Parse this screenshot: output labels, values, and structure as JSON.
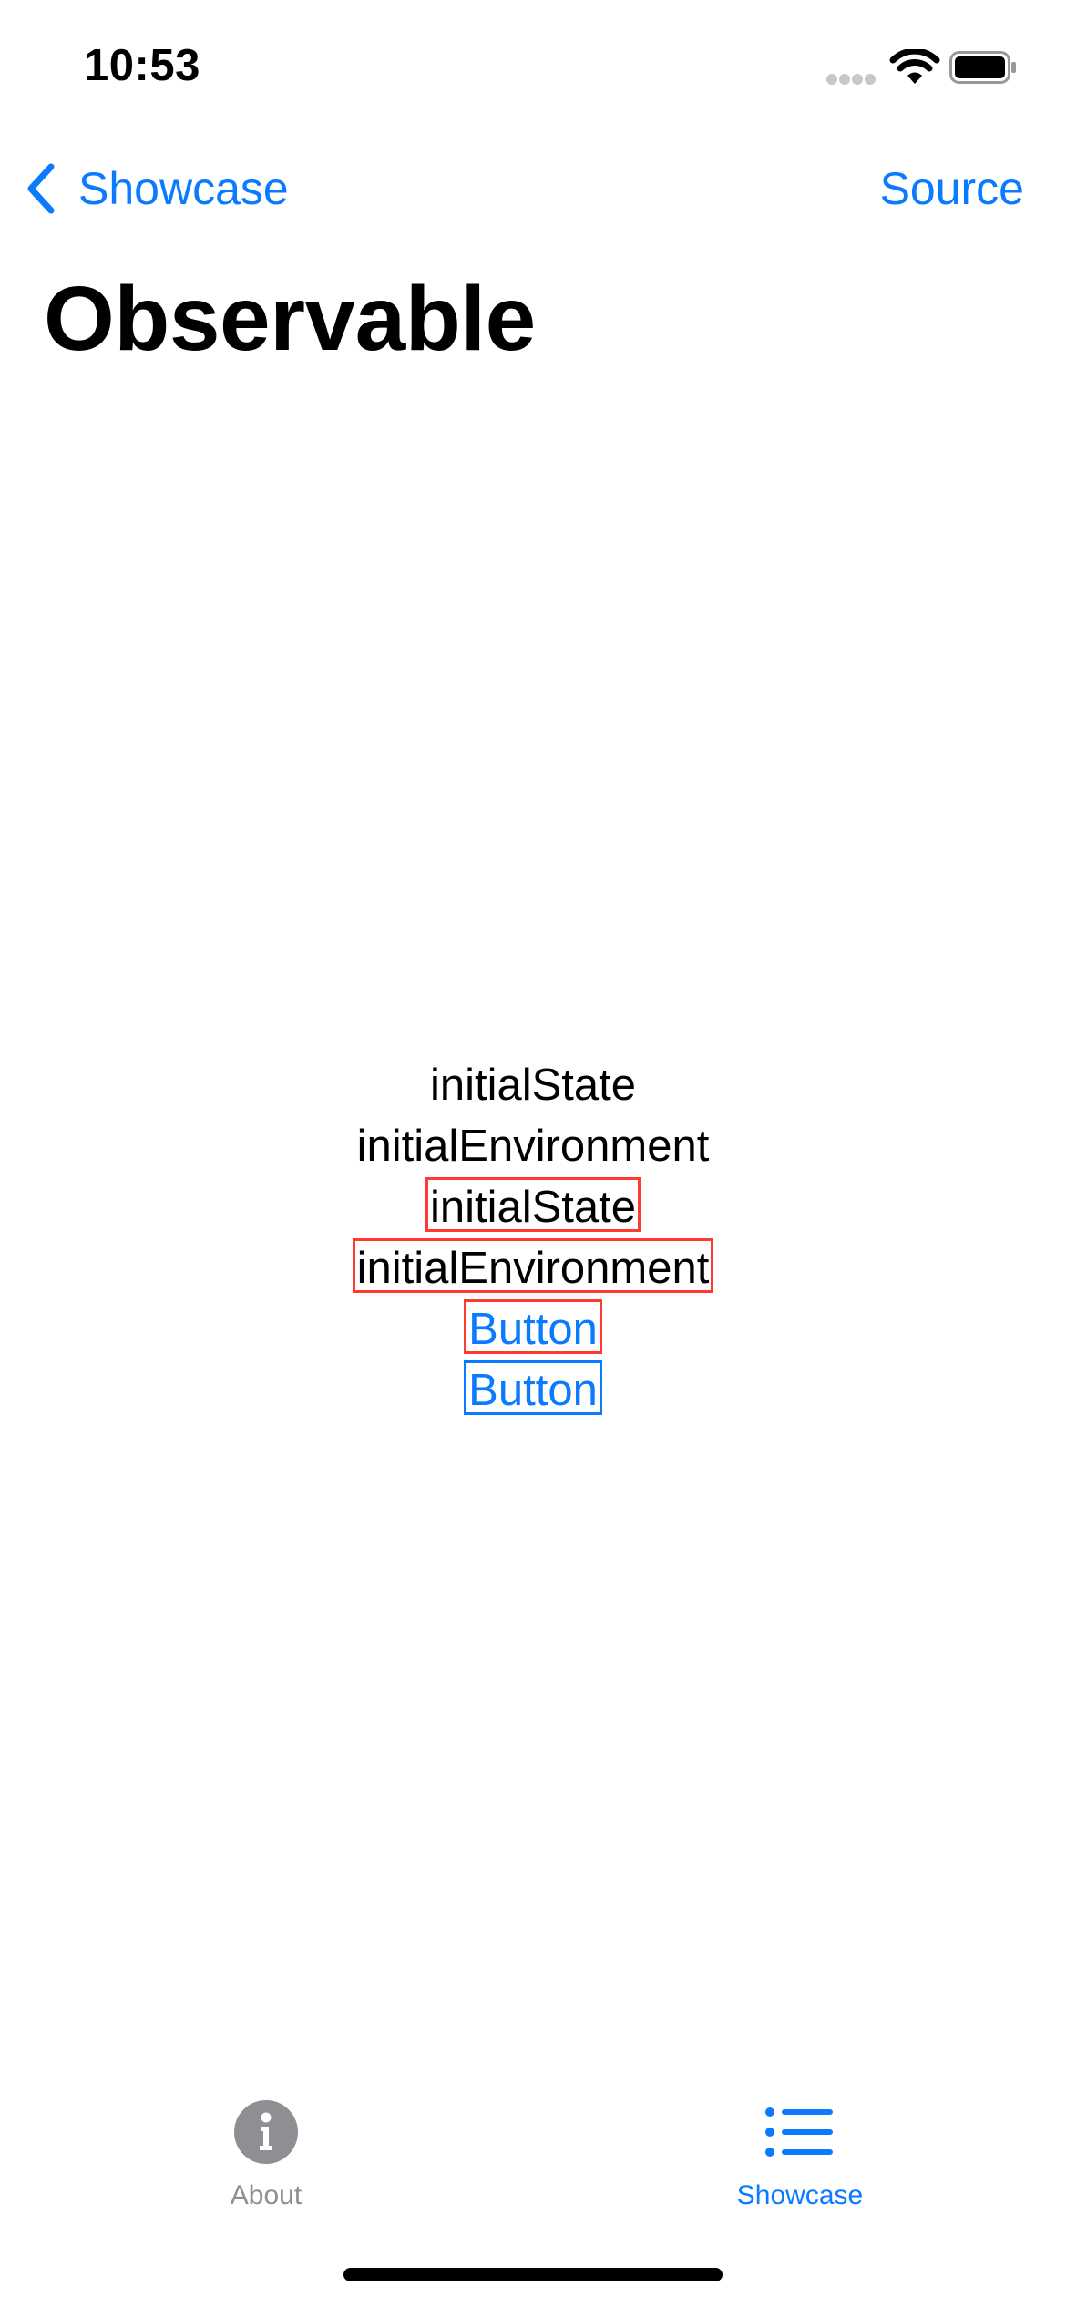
{
  "status_bar": {
    "time": "10:53",
    "signal_icon": "cellular-signal-icon",
    "wifi_icon": "wifi-icon",
    "battery_icon": "battery-icon"
  },
  "nav": {
    "back_icon": "chevron-left-icon",
    "back_label": "Showcase",
    "right_button_label": "Source"
  },
  "page": {
    "title": "Observable"
  },
  "content": {
    "items": [
      {
        "text": "initialState"
      },
      {
        "text": "initialEnvironment"
      },
      {
        "text": "initialState"
      },
      {
        "text": "initialEnvironment"
      },
      {
        "text": "Button"
      },
      {
        "text": "Button"
      }
    ]
  },
  "tab_bar": {
    "tabs": [
      {
        "label": "About",
        "icon": "info-circle-icon",
        "selected": false
      },
      {
        "label": "Showcase",
        "icon": "list-bullet-icon",
        "selected": true
      }
    ]
  },
  "colors": {
    "accent": "#0a7aff",
    "outline_red": "#ff3b30",
    "inactive_gray": "#8e8e93"
  }
}
